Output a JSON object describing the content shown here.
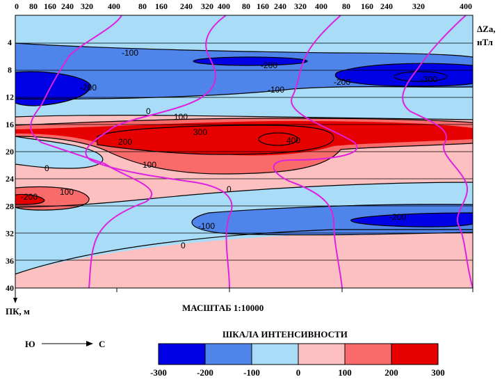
{
  "chart_data": {
    "type": "heatmap",
    "top_ticks": [
      "0",
      "80",
      "160",
      "240",
      "320",
      "400",
      "80",
      "160",
      "240",
      "320",
      "400",
      "80",
      "160",
      "240",
      "320",
      "400",
      "80",
      "160",
      "240",
      "320",
      "400"
    ],
    "y_ticks": [
      "4",
      "8",
      "12",
      "16",
      "20",
      "24",
      "28",
      "32",
      "36",
      "40"
    ],
    "y_label": "ПК, м",
    "right_label_1": "ΔZa,",
    "right_label_2": "нТл",
    "scale_title": "МАСШТАБ 1:10000",
    "direction_from": "Ю",
    "direction_to": "С",
    "legend_title": "ШКАЛА ИНТЕНСИВНОСТИ",
    "legend_ticks": [
      "-300",
      "-200",
      "-100",
      "0",
      "100",
      "200",
      "300"
    ],
    "legend_colors": [
      "#0000e6",
      "#4f84ea",
      "#a8dcf7",
      "#fcc0c0",
      "#f96a6a",
      "#e60000"
    ],
    "contour_labels": {
      "m100a": "-100",
      "m200a": "-200",
      "m200b": "-200",
      "m300": "-300",
      "m200c": "-200",
      "m100b": "-100",
      "z0a": "0",
      "p100a": "100",
      "p300": "300",
      "p400": "400",
      "p200": "200",
      "p100b": "100",
      "z0b": "0",
      "p200b": "-200",
      "p100c": "100",
      "z0c": "0",
      "m100c": "-100",
      "m200d": "-200",
      "z0d": "0"
    },
    "profile_count": 4,
    "profile_spacing_m": 4,
    "profile_range_m": [
      0,
      40
    ]
  }
}
